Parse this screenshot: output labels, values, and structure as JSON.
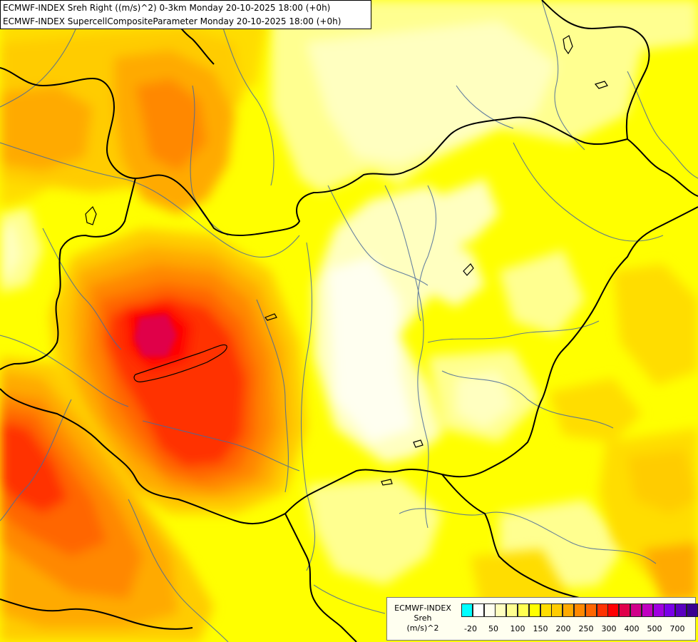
{
  "header": {
    "line1": "ECMWF-INDEX Sreh Right ((m/s)^2) 0-3km Monday 20-10-2025 18:00 (+0h)",
    "line2": "ECMWF-INDEX SupercellCompositeParameter Monday 20-10-2025 18:00 (+0h)"
  },
  "legend": {
    "source": "ECMWF-INDEX",
    "variable": "Sreh",
    "unit": "(m/s)^2",
    "swatches": [
      "#00ffff",
      "#ffffff",
      "#fffff0",
      "#ffffc0",
      "#ffff90",
      "#ffff50",
      "#ffff00",
      "#ffdd00",
      "#ffcc00",
      "#ffaa00",
      "#ff8800",
      "#ff6600",
      "#ff3300",
      "#ff0000",
      "#e0004a",
      "#d0008a",
      "#c000c0",
      "#a000e0",
      "#7a00e8",
      "#5a00c0",
      "#3a0090",
      "#000060"
    ],
    "ticks": [
      "-20",
      "50",
      "100",
      "150",
      "200",
      "250",
      "300",
      "400",
      "500",
      "700"
    ]
  },
  "colors": {
    "map_background": "#ffff00",
    "borders": "#000000",
    "rivers": "#4a6a9a"
  }
}
